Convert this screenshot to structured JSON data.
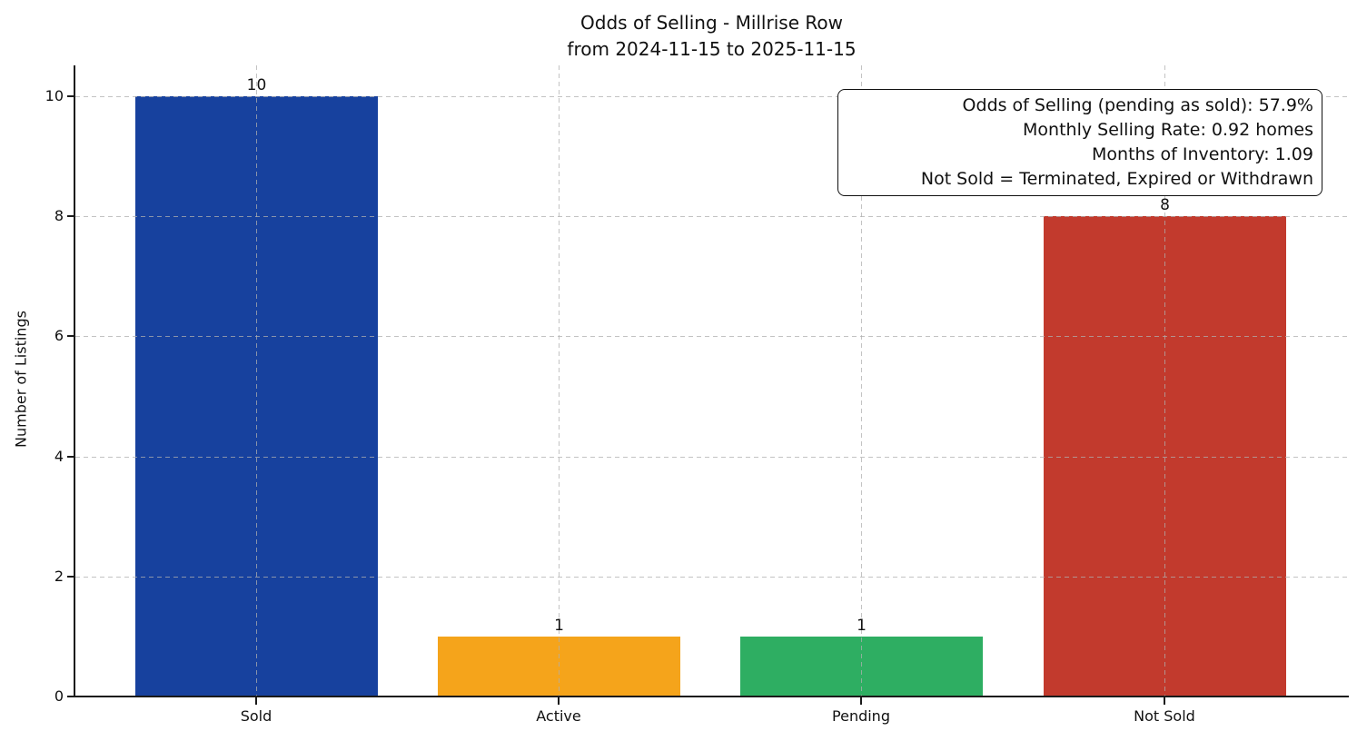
{
  "title": {
    "line1": "Odds of Selling - Millrise Row",
    "line2": "from 2024-11-15 to 2025-11-15"
  },
  "ylabel": "Number of Listings",
  "yticks": [
    "0",
    "2",
    "4",
    "6",
    "8",
    "10"
  ],
  "annotation": {
    "line1": "Odds of Selling (pending as sold): 57.9%",
    "line2": "Monthly Selling Rate: 0.92 homes",
    "line3": "Months of Inventory: 1.09",
    "line4": "Not Sold = Terminated, Expired or Withdrawn"
  },
  "chart_data": {
    "type": "bar",
    "title": "Odds of Selling - Millrise Row",
    "subtitle": "from 2024-11-15 to 2025-11-15",
    "categories": [
      "Sold",
      "Active",
      "Pending",
      "Not Sold"
    ],
    "values": [
      10,
      1,
      1,
      8
    ],
    "colors": [
      "#17419E",
      "#F5A41B",
      "#2EAE62",
      "#C23A2D"
    ],
    "xlabel": "",
    "ylabel": "Number of Listings",
    "ylim": [
      0,
      10.5
    ],
    "ytick_values": [
      0,
      2,
      4,
      6,
      8,
      10
    ],
    "grid": "dashed, both axes, drawn over bars",
    "legend": "none",
    "annotation_lines": [
      "Odds of Selling (pending as sold): 57.9%",
      "Monthly Selling Rate: 0.92 homes",
      "Months of Inventory: 1.09",
      "Not Sold = Terminated, Expired or Withdrawn"
    ]
  }
}
